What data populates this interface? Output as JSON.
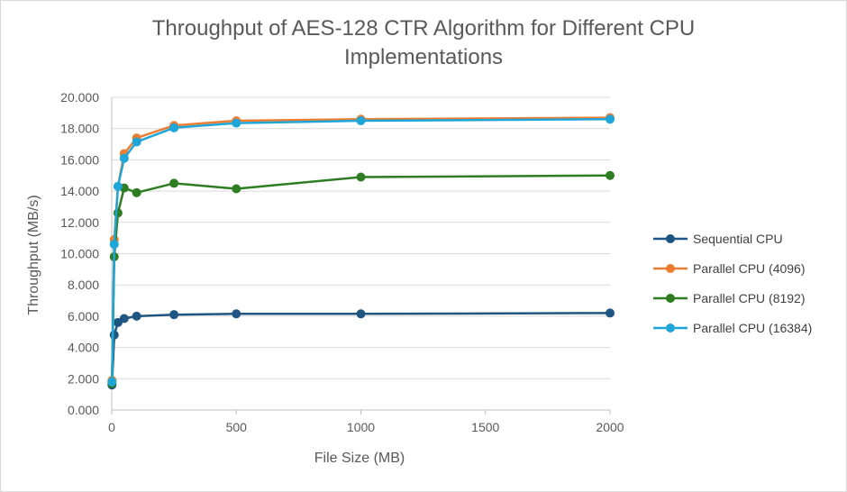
{
  "chart_data": {
    "type": "scatter",
    "title_line1": "Throughput of AES-128 CTR Algorithm for Different CPU",
    "title_line2": "Implementations",
    "xlabel": "File Size (MB)",
    "ylabel": "Throughput (MB/s)",
    "xlim": [
      0,
      2000
    ],
    "ylim": [
      0,
      20
    ],
    "xticks": [
      0,
      500,
      1000,
      1500,
      2000
    ],
    "xtick_labels": [
      "0",
      "500",
      "1000",
      "1500",
      "2000"
    ],
    "yticks": [
      0,
      2,
      4,
      6,
      8,
      10,
      12,
      14,
      16,
      18,
      20
    ],
    "ytick_labels": [
      "0.000",
      "2.000",
      "4.000",
      "6.000",
      "8.000",
      "10.000",
      "12.000",
      "14.000",
      "16.000",
      "18.000",
      "20.000"
    ],
    "grid": "horizontal",
    "legend_position": "right",
    "series": [
      {
        "name": "Sequential CPU",
        "color": "#1f5582",
        "points": [
          [
            1,
            1.6
          ],
          [
            10,
            4.8
          ],
          [
            25,
            5.6
          ],
          [
            50,
            5.85
          ],
          [
            100,
            6.0
          ],
          [
            250,
            6.1
          ],
          [
            500,
            6.15
          ],
          [
            1000,
            6.15
          ],
          [
            2000,
            6.2
          ]
        ]
      },
      {
        "name": "Parallel CPU (4096)",
        "color": "#ed7d31",
        "points": [
          [
            1,
            1.9
          ],
          [
            10,
            10.9
          ],
          [
            25,
            14.3
          ],
          [
            50,
            16.4
          ],
          [
            100,
            17.4
          ],
          [
            250,
            18.2
          ],
          [
            500,
            18.5
          ],
          [
            1000,
            18.6
          ],
          [
            2000,
            18.7
          ]
        ]
      },
      {
        "name": "Parallel CPU (8192)",
        "color": "#2e7d22",
        "points": [
          [
            1,
            1.7
          ],
          [
            10,
            9.8
          ],
          [
            25,
            12.6
          ],
          [
            50,
            14.2
          ],
          [
            100,
            13.9
          ],
          [
            250,
            14.5
          ],
          [
            500,
            14.15
          ],
          [
            1000,
            14.9
          ],
          [
            2000,
            15.0
          ]
        ]
      },
      {
        "name": "Parallel CPU (16384)",
        "color": "#1fa6d8",
        "points": [
          [
            1,
            1.8
          ],
          [
            10,
            10.6
          ],
          [
            25,
            14.3
          ],
          [
            50,
            16.1
          ],
          [
            100,
            17.15
          ],
          [
            250,
            18.05
          ],
          [
            500,
            18.35
          ],
          [
            1000,
            18.5
          ],
          [
            2000,
            18.6
          ]
        ]
      }
    ]
  }
}
